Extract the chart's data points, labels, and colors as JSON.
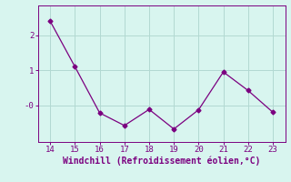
{
  "x": [
    14,
    15,
    16,
    17,
    18,
    19,
    20,
    21,
    22,
    23
  ],
  "y": [
    2.4,
    1.1,
    -0.22,
    -0.58,
    -0.12,
    -0.68,
    -0.13,
    0.95,
    0.42,
    -0.2
  ],
  "line_color": "#7b0080",
  "marker": "D",
  "marker_size": 2.5,
  "background_color": "#d8f5ef",
  "grid_color": "#b2d9d2",
  "xlabel": "Windchill (Refroidissement éolien,°C)",
  "xlabel_fontsize": 7,
  "tick_fontsize": 6.5,
  "ylim": [
    -1.05,
    2.85
  ],
  "xlim": [
    13.5,
    23.5
  ],
  "xticks": [
    14,
    15,
    16,
    17,
    18,
    19,
    20,
    21,
    22,
    23
  ],
  "yticks": [
    0.0,
    1.0,
    2.0
  ],
  "ytick_labels": [
    "-0",
    "1",
    "2"
  ]
}
